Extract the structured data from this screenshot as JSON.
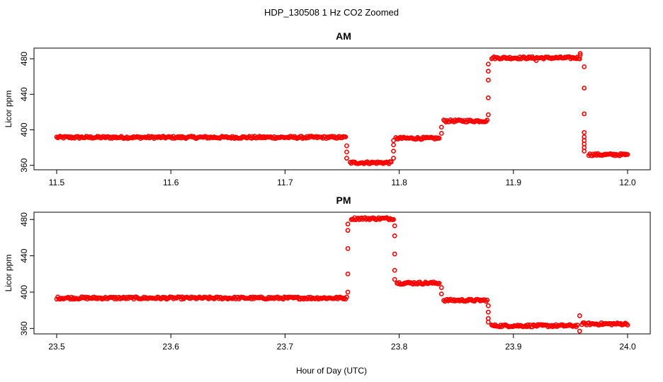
{
  "figure": {
    "title": "HDP_130508  1 Hz CO2 Zoomed",
    "xlabel": "Hour of Day (UTC)"
  },
  "chart_data": [
    {
      "type": "scatter",
      "title": "AM",
      "ylabel": "Licor ppm",
      "xlim": [
        11.5,
        12.0
      ],
      "ylim": [
        355,
        492
      ],
      "xticks": [
        "11.5",
        "11.6",
        "11.7",
        "11.8",
        "11.9",
        "12.0"
      ],
      "yticks": [
        "360",
        "400",
        "440",
        "480"
      ],
      "grid": false,
      "marker_color": "#ff0000",
      "series": [
        {
          "segments": [
            {
              "x": [
                11.5,
                11.753
              ],
              "y": 391.5
            },
            {
              "x": [
                11.757,
                11.793
              ],
              "y": 363
            },
            {
              "x": [
                11.797,
                11.835
              ],
              "y": 390.5
            },
            {
              "x": [
                11.839,
                11.877
              ],
              "y": 410
            },
            {
              "x": [
                11.881,
                11.958
              ],
              "y": 481
            },
            {
              "x": [
                11.966,
                12.0
              ],
              "y": 372
            }
          ],
          "transitions": [
            {
              "x": 11.754,
              "y": [
                382,
                375,
                368
              ]
            },
            {
              "x": 11.795,
              "y": [
                368,
                376,
                383,
                388
              ]
            },
            {
              "x": 11.837,
              "y": [
                396,
                403
              ]
            },
            {
              "x": 11.878,
              "y": [
                417,
                436,
                456,
                466,
                474
              ]
            },
            {
              "x": 11.9585,
              "y": [
                484,
                486
              ]
            },
            {
              "x": 11.962,
              "y": [
                471,
                447,
                418,
                397,
                392,
                388,
                384,
                380,
                376
              ]
            }
          ],
          "outliers": [
            {
              "x": 11.92,
              "y": 478
            }
          ]
        }
      ]
    },
    {
      "type": "scatter",
      "title": "PM",
      "ylabel": "Licor ppm",
      "xlim": [
        23.5,
        24.0
      ],
      "ylim": [
        354,
        488
      ],
      "xticks": [
        "23.5",
        "23.6",
        "23.7",
        "23.8",
        "23.9",
        "24.0"
      ],
      "yticks": [
        "360",
        "400",
        "440",
        "480"
      ],
      "grid": false,
      "marker_color": "#ff0000",
      "series": [
        {
          "segments": [
            {
              "x": [
                23.5,
                23.754
              ],
              "y": 393.5
            },
            {
              "x": [
                23.758,
                23.795
              ],
              "y": 481
            },
            {
              "x": [
                23.798,
                23.835
              ],
              "y": 410
            },
            {
              "x": [
                23.839,
                23.877
              ],
              "y": 391
            },
            {
              "x": [
                23.881,
                23.956
              ],
              "y": 363
            },
            {
              "x": [
                23.96,
                24.0
              ],
              "y": 365
            }
          ],
          "transitions": [
            {
              "x": 23.755,
              "y": [
                400,
                420,
                448,
                468,
                475
              ]
            },
            {
              "x": 23.796,
              "y": [
                473,
                462,
                442,
                424,
                414
              ]
            },
            {
              "x": 23.837,
              "y": [
                405,
                398
              ]
            },
            {
              "x": 23.878,
              "y": [
                385,
                378,
                371,
                367
              ]
            },
            {
              "x": 23.958,
              "y": [
                357,
                374
              ]
            }
          ],
          "outliers": []
        }
      ]
    }
  ]
}
